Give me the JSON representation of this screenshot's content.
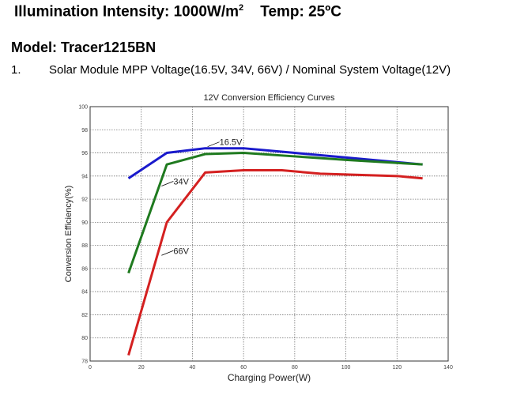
{
  "header": {
    "illumination_label": "Illumination Intensity: 1000W/m",
    "illumination_sup": "2",
    "temp": "Temp: 25ºC"
  },
  "model": "Model: Tracer1215BN",
  "item": {
    "number": "1.",
    "text": "Solar Module MPP Voltage(16.5V, 34V, 66V) / Nominal System Voltage(12V)"
  },
  "chart_data": {
    "type": "line",
    "title": "12V Conversion Efficiency Curves",
    "xlabel": "Charging Power(W)",
    "ylabel": "Conversion Efficiency(%)",
    "xlim": [
      0,
      140
    ],
    "ylim": [
      78,
      100
    ],
    "xticks": [
      0,
      20,
      40,
      60,
      80,
      100,
      120,
      140
    ],
    "yticks": [
      78,
      80,
      82,
      84,
      86,
      88,
      90,
      92,
      94,
      96,
      98,
      100
    ],
    "grid": true,
    "series": [
      {
        "name": "16.5V",
        "color": "#1a1acc",
        "x": [
          15,
          30,
          45,
          60,
          80,
          100,
          130
        ],
        "y": [
          93.8,
          96,
          96.4,
          96.4,
          96,
          95.6,
          95
        ]
      },
      {
        "name": "34V",
        "color": "#1f7a1f",
        "x": [
          15,
          30,
          45,
          60,
          80,
          100,
          130
        ],
        "y": [
          85.6,
          95,
          95.9,
          96,
          95.7,
          95.4,
          95
        ]
      },
      {
        "name": "66V",
        "color": "#d42020",
        "x": [
          15,
          30,
          45,
          60,
          75,
          90,
          120,
          130
        ],
        "y": [
          78.5,
          90,
          94.3,
          94.5,
          94.5,
          94.2,
          94,
          93.8
        ]
      }
    ],
    "annotations": [
      {
        "text": "16.5V",
        "at": [
          45,
          96.4
        ]
      },
      {
        "text": "34V",
        "at": [
          27,
          93
        ]
      },
      {
        "text": "66V",
        "at": [
          27,
          87
        ]
      }
    ]
  }
}
